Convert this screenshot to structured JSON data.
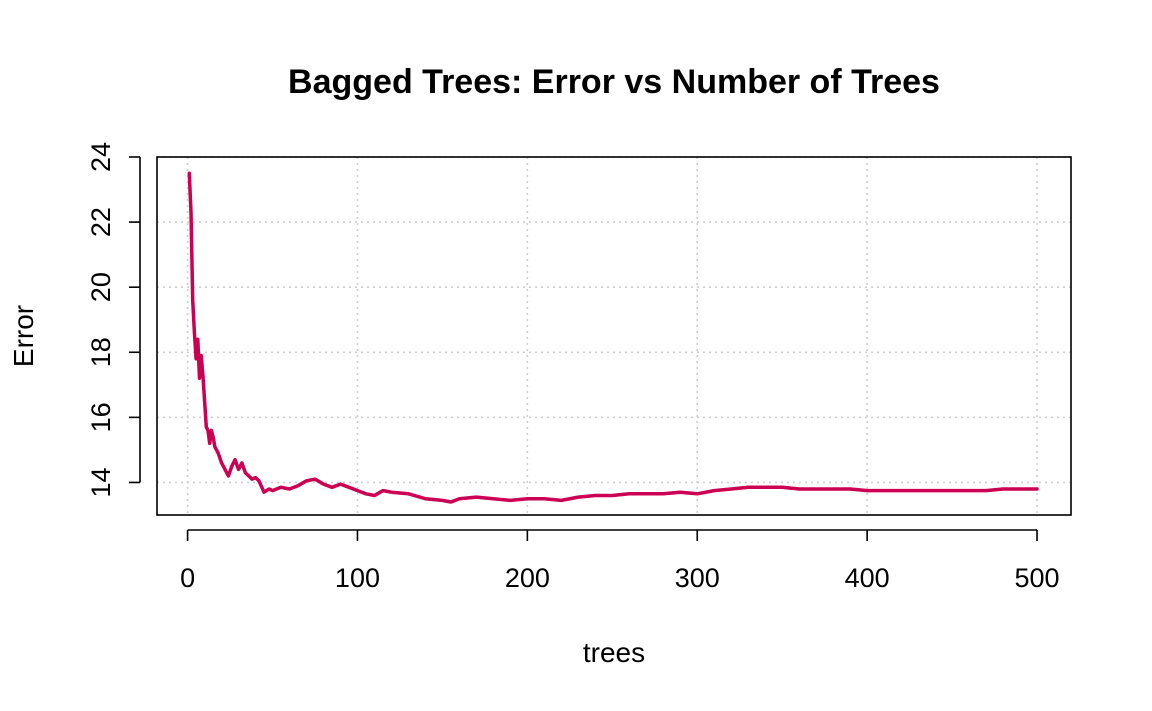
{
  "chart_data": {
    "type": "line",
    "title": "Bagged Trees: Error vs Number of Trees",
    "xlabel": "trees",
    "ylabel": "Error",
    "xlim": [
      -18,
      520
    ],
    "ylim": [
      13,
      24
    ],
    "xticks": [
      0,
      100,
      200,
      300,
      400,
      500
    ],
    "yticks": [
      14,
      16,
      18,
      20,
      22,
      24
    ],
    "grid": true,
    "line_color": "#CC0052",
    "series": [
      {
        "x": [
          1,
          2,
          3,
          4,
          5,
          6,
          7,
          8,
          9,
          10,
          11,
          12,
          13,
          14,
          15,
          16,
          18,
          20,
          22,
          24,
          26,
          28,
          30,
          32,
          34,
          36,
          38,
          40,
          42,
          45,
          48,
          50,
          55,
          60,
          65,
          70,
          75,
          80,
          85,
          90,
          95,
          100,
          105,
          110,
          115,
          120,
          130,
          140,
          150,
          155,
          160,
          170,
          180,
          190,
          200,
          210,
          220,
          230,
          240,
          250,
          260,
          270,
          280,
          290,
          300,
          310,
          320,
          330,
          340,
          350,
          360,
          370,
          380,
          390,
          400,
          410,
          420,
          430,
          440,
          450,
          460,
          470,
          480,
          490,
          500
        ],
        "y": [
          23.5,
          22.3,
          19.6,
          18.6,
          17.8,
          18.4,
          17.2,
          17.9,
          17.3,
          16.5,
          15.7,
          15.6,
          15.2,
          15.6,
          15.4,
          15.1,
          14.9,
          14.6,
          14.4,
          14.2,
          14.5,
          14.7,
          14.4,
          14.6,
          14.3,
          14.2,
          14.1,
          14.15,
          14.05,
          13.7,
          13.8,
          13.75,
          13.85,
          13.8,
          13.9,
          14.05,
          14.1,
          13.95,
          13.85,
          13.95,
          13.85,
          13.75,
          13.65,
          13.6,
          13.75,
          13.7,
          13.65,
          13.5,
          13.45,
          13.4,
          13.5,
          13.55,
          13.5,
          13.45,
          13.5,
          13.5,
          13.45,
          13.55,
          13.6,
          13.6,
          13.65,
          13.65,
          13.65,
          13.7,
          13.65,
          13.75,
          13.8,
          13.85,
          13.85,
          13.85,
          13.8,
          13.8,
          13.8,
          13.8,
          13.75,
          13.75,
          13.75,
          13.75,
          13.75,
          13.75,
          13.75,
          13.75,
          13.8,
          13.8,
          13.8
        ]
      }
    ]
  }
}
